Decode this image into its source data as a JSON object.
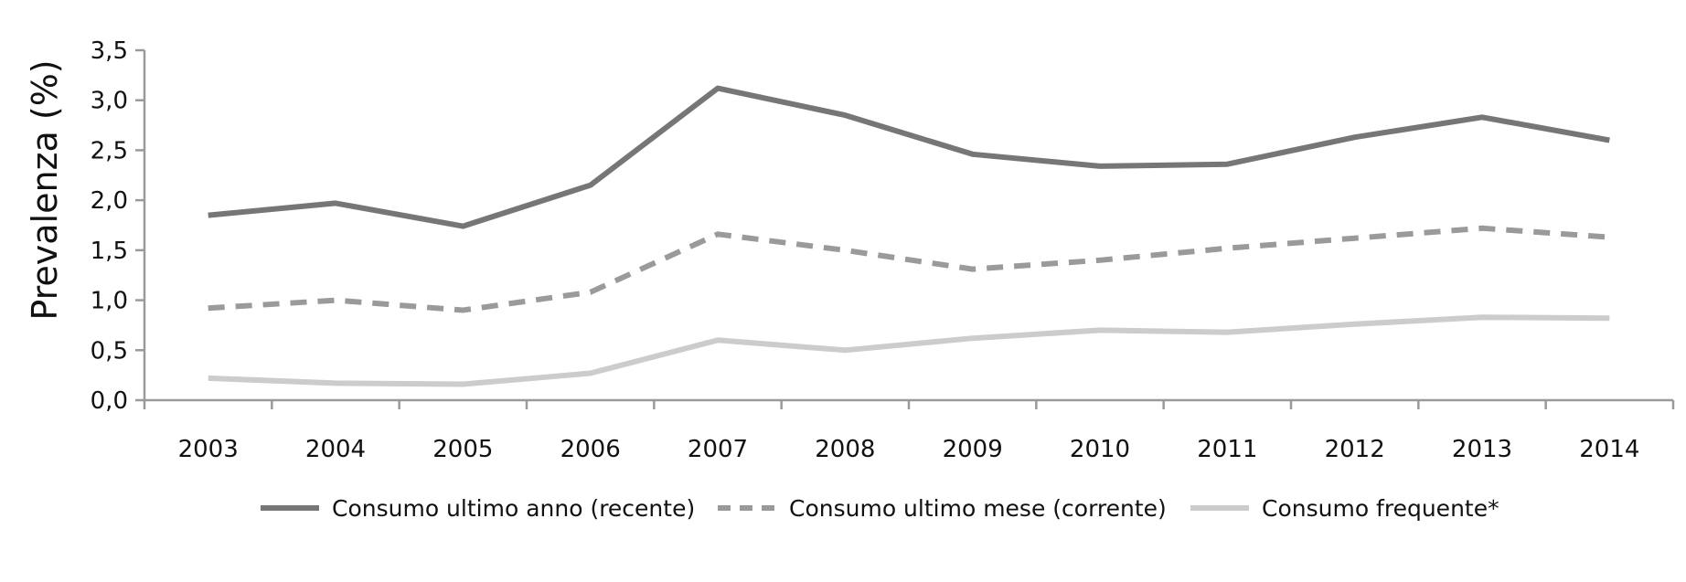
{
  "chart_data": {
    "type": "line",
    "ylabel": "Prevalenza (%)",
    "xlabel": "",
    "title": "",
    "categories": [
      "2003",
      "2004",
      "2005",
      "2006",
      "2007",
      "2008",
      "2009",
      "2010",
      "2011",
      "2012",
      "2013",
      "2014"
    ],
    "ylim": [
      0,
      3.5
    ],
    "yticks": [
      "0,0",
      "0,5",
      "1,0",
      "1,5",
      "2,0",
      "2,5",
      "3,0",
      "3,5"
    ],
    "ytick_values": [
      0,
      0.5,
      1.0,
      1.5,
      2.0,
      2.5,
      3.0,
      3.5
    ],
    "grid": false,
    "legend_position": "bottom",
    "series": [
      {
        "name": "Consumo ultimo anno (recente)",
        "color": "#767676",
        "style": "solid",
        "values": [
          1.85,
          1.97,
          1.74,
          2.15,
          3.12,
          2.85,
          2.46,
          2.34,
          2.36,
          2.63,
          2.83,
          2.6
        ]
      },
      {
        "name": "Consumo ultimo mese (corrente)",
        "color": "#9a9a9a",
        "style": "dashed",
        "values": [
          0.92,
          1.0,
          0.9,
          1.08,
          1.66,
          1.5,
          1.31,
          1.4,
          1.52,
          1.62,
          1.72,
          1.63
        ]
      },
      {
        "name": "Consumo frequente*",
        "color": "#cccccc",
        "style": "solid",
        "values": [
          0.22,
          0.17,
          0.16,
          0.27,
          0.6,
          0.5,
          0.62,
          0.7,
          0.68,
          0.76,
          0.83,
          0.82
        ]
      }
    ]
  }
}
